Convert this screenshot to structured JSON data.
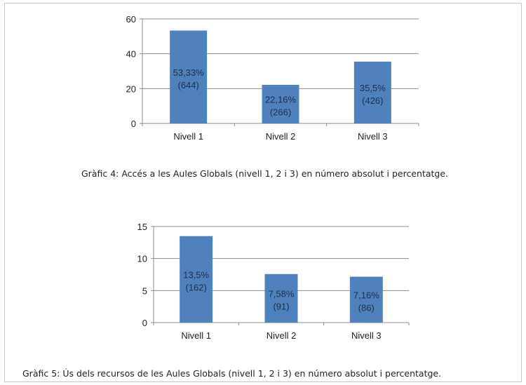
{
  "chart_data": [
    {
      "type": "bar",
      "categories": [
        "Nivell 1",
        "Nivell 2",
        "Nivell 3"
      ],
      "values": [
        53.33,
        22.16,
        35.5
      ],
      "data_labels": [
        [
          "53,33%",
          "(644)"
        ],
        [
          "22,16%",
          "(266)"
        ],
        [
          "35,5%",
          "(426)"
        ]
      ],
      "ylim": [
        0,
        60
      ],
      "yticks": [
        0,
        20,
        40,
        60
      ],
      "grid": true,
      "bar_color": "#4f81bd",
      "caption": "Gràfic 4: Accés a les Aules Globals (nivell 1, 2 i 3) en número absolut i percentatge."
    },
    {
      "type": "bar",
      "categories": [
        "Nivell 1",
        "Nivell 2",
        "Nivell 3"
      ],
      "values": [
        13.5,
        7.58,
        7.16
      ],
      "data_labels": [
        [
          "13,5%",
          "(162)"
        ],
        [
          "7,58%",
          "(91)"
        ],
        [
          "7,16%",
          "(86)"
        ]
      ],
      "ylim": [
        0,
        15
      ],
      "yticks": [
        0,
        5,
        10,
        15
      ],
      "grid": true,
      "bar_color": "#4f81bd",
      "caption": "Gràfic 5: Ús dels recursos de les Aules Globals (nivell 1, 2 i 3) en número absolut i percentatge."
    }
  ]
}
